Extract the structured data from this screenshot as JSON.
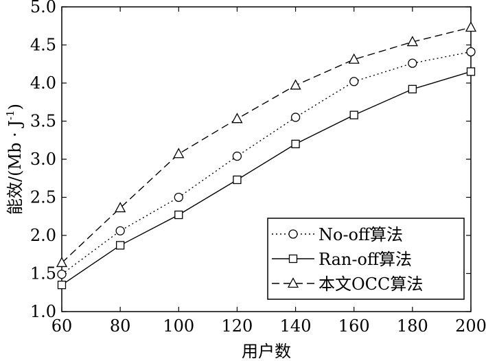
{
  "chart_data": {
    "type": "line",
    "xlabel": "用户数",
    "ylabel": "能效/(Mb · J",
    "ylabel_sup": "-1",
    "ylabel_close": ")",
    "x": [
      60,
      80,
      100,
      120,
      140,
      160,
      180,
      200
    ],
    "xlim": [
      60,
      200
    ],
    "ylim": [
      1.0,
      5.0
    ],
    "x_ticks": [
      "60",
      "80",
      "100",
      "120",
      "140",
      "160",
      "180",
      "200"
    ],
    "y_ticks": [
      "1.0",
      "1.5",
      "2.0",
      "2.5",
      "3.0",
      "3.5",
      "4.0",
      "4.5",
      "5.0"
    ],
    "grid": false,
    "legend_position": "bottom-right",
    "series": [
      {
        "name": "No-off算法",
        "marker": "circle",
        "line_style": "dotted",
        "values": [
          1.49,
          2.06,
          2.5,
          3.04,
          3.55,
          4.02,
          4.26,
          4.41
        ]
      },
      {
        "name": "Ran-off算法",
        "marker": "square",
        "line_style": "solid",
        "values": [
          1.35,
          1.87,
          2.27,
          2.73,
          3.2,
          3.58,
          3.92,
          4.15
        ]
      },
      {
        "name": "本文OCC算法",
        "marker": "triangle",
        "line_style": "dashed",
        "values": [
          1.64,
          2.36,
          3.07,
          3.53,
          3.97,
          4.31,
          4.54,
          4.73
        ]
      }
    ]
  }
}
